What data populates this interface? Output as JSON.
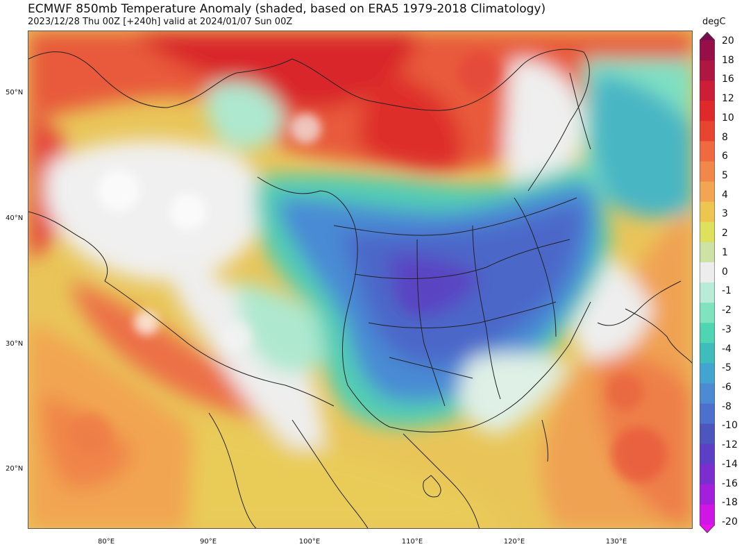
{
  "title": "ECMWF 850mb Temperature Anomaly (shaded, based on ERA5 1979-2018 Climatology)",
  "subtitle": "2023/12/28 Thu 00Z [+240h] valid at 2024/01/07 Sun 00Z",
  "lat_labels": [
    "50°N",
    "40°N",
    "30°N",
    "20°N"
  ],
  "lon_labels": [
    "80°E",
    "90°E",
    "100°E",
    "110°E",
    "120°E",
    "130°E"
  ],
  "colorbar": {
    "unit": "degC",
    "labels": [
      "20",
      "18",
      "16",
      "12",
      "10",
      "8",
      "6",
      "5",
      "4",
      "3",
      "2",
      "1",
      "0",
      "-1",
      "-2",
      "-3",
      "-4",
      "-5",
      "-6",
      "-8",
      "-10",
      "-12",
      "-14",
      "-16",
      "-18",
      "-20"
    ],
    "colors": [
      "#7a0a4d",
      "#960f49",
      "#b01642",
      "#cc1f37",
      "#e02a2a",
      "#e8452e",
      "#ef6a3e",
      "#f2874a",
      "#f3a552",
      "#edc652",
      "#dfe05c",
      "#cfe2a6",
      "#ededed",
      "#b9ecd8",
      "#7fe3c0",
      "#4fd5b2",
      "#3fbcbc",
      "#42a4d0",
      "#4a8bd4",
      "#4c70cc",
      "#4d55bf",
      "#5b3fc4",
      "#7a2ed0",
      "#a41fdc",
      "#d016e6",
      "#ee10ee"
    ]
  },
  "map_colors": {
    "warm_strong": "#df2f30",
    "warm": "#ec6f47",
    "warm_light": "#f2a551",
    "mild": "#e8cc58",
    "near_zero": "#efefef",
    "cool_light": "#aee8cf",
    "cool": "#53cdb3",
    "cold": "#4a96d4",
    "colder": "#4b67c9",
    "coldest": "#5a45c2"
  }
}
